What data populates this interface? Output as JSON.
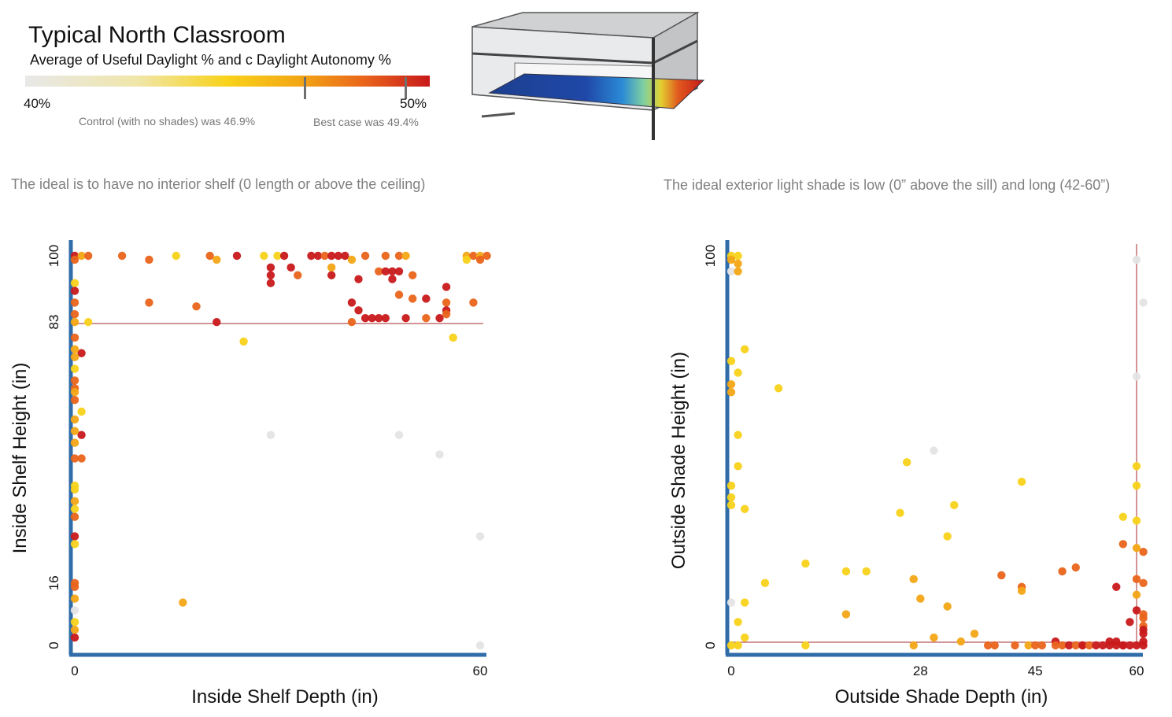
{
  "header": {
    "title": "Typical North Classroom",
    "subtitle": "Average of Useful Daylight % and c Daylight Autonomy %",
    "scale_min": "40%",
    "scale_max": "50%",
    "control_note": "Control (with no shades) was 46.9%",
    "best_note": "Best case was 49.4%",
    "control_value": 46.9,
    "best_value": 49.4
  },
  "captions": {
    "left": "The ideal is to have no interior shelf (0 length or above the ceiling)",
    "right": "The ideal exterior light shade is low (0” above the sill) and long (42-60”)"
  },
  "colors": {
    "axis": "#2f6ca8",
    "reference_line": "#a52a2a",
    "scale": [
      "#e4e4e4",
      "#f8d21a",
      "#f3a615",
      "#e9641b",
      "#c8191b"
    ]
  },
  "chart_data": [
    {
      "type": "scatter",
      "xlabel": "Inside Shelf Depth (in)",
      "ylabel": "Inside Shelf Height (in)",
      "xlim": [
        0,
        60
      ],
      "ylim": [
        0,
        100
      ],
      "xticks": [
        "0",
        "60"
      ],
      "yticks": [
        "0",
        "16",
        "83",
        "100"
      ],
      "ytick_values": [
        0,
        16,
        83,
        100
      ],
      "reference_lines": [
        {
          "axis": "y",
          "value": 83
        }
      ],
      "points": [
        [
          0,
          100,
          4
        ],
        [
          0,
          99,
          3
        ],
        [
          1,
          100,
          2
        ],
        [
          2,
          100,
          3
        ],
        [
          7,
          100,
          3
        ],
        [
          11,
          99,
          3
        ],
        [
          15,
          100,
          1
        ],
        [
          20,
          100,
          3
        ],
        [
          21,
          99,
          2
        ],
        [
          24,
          100,
          4
        ],
        [
          28,
          100,
          1
        ],
        [
          30,
          100,
          1
        ],
        [
          31,
          100,
          4
        ],
        [
          35,
          100,
          4
        ],
        [
          36,
          100,
          4
        ],
        [
          37,
          100,
          3
        ],
        [
          38,
          100,
          4
        ],
        [
          39,
          100,
          4
        ],
        [
          40,
          100,
          4
        ],
        [
          41,
          99,
          2
        ],
        [
          43,
          100,
          3
        ],
        [
          46,
          100,
          3
        ],
        [
          48,
          100,
          3
        ],
        [
          49,
          100,
          2
        ],
        [
          58,
          100,
          2
        ],
        [
          59,
          100,
          3
        ],
        [
          60,
          100,
          2
        ],
        [
          58,
          99,
          1
        ],
        [
          60,
          99,
          3
        ],
        [
          61,
          100,
          3
        ],
        [
          29,
          97,
          4
        ],
        [
          32,
          97,
          4
        ],
        [
          38,
          97,
          2
        ],
        [
          45,
          96,
          3
        ],
        [
          46,
          96,
          4
        ],
        [
          47,
          96,
          4
        ],
        [
          48,
          96,
          4
        ],
        [
          50,
          95,
          3
        ],
        [
          29,
          95,
          4
        ],
        [
          33,
          95,
          3
        ],
        [
          38,
          95,
          4
        ],
        [
          42,
          94,
          4
        ],
        [
          47,
          94,
          4
        ],
        [
          29,
          93,
          4
        ],
        [
          55,
          92,
          4
        ],
        [
          0,
          93,
          1
        ],
        [
          0,
          91,
          4
        ],
        [
          48,
          90,
          3
        ],
        [
          50,
          89,
          3
        ],
        [
          52,
          89,
          4
        ],
        [
          11,
          88,
          3
        ],
        [
          41,
          88,
          4
        ],
        [
          55,
          88,
          3
        ],
        [
          59,
          88,
          3
        ],
        [
          18,
          87,
          3
        ],
        [
          42,
          86,
          4
        ],
        [
          55,
          86,
          4
        ],
        [
          44,
          84,
          4
        ],
        [
          45,
          84,
          4
        ],
        [
          46,
          84,
          4
        ],
        [
          49,
          84,
          4
        ],
        [
          52,
          84,
          3
        ],
        [
          54,
          84,
          4
        ],
        [
          55,
          85,
          3
        ],
        [
          21,
          83,
          4
        ],
        [
          41,
          83,
          3
        ],
        [
          43,
          84,
          4
        ],
        [
          0,
          88,
          3
        ],
        [
          0,
          85,
          3
        ],
        [
          0,
          83,
          2
        ],
        [
          2,
          83,
          1
        ],
        [
          56,
          79,
          1
        ],
        [
          25,
          78,
          1
        ],
        [
          0,
          79,
          3
        ],
        [
          1,
          75,
          4
        ],
        [
          0,
          76,
          2
        ],
        [
          0,
          74,
          2
        ],
        [
          0,
          71,
          1
        ],
        [
          0,
          68,
          3
        ],
        [
          0,
          66,
          3
        ],
        [
          0,
          65,
          2
        ],
        [
          0,
          63,
          3
        ],
        [
          1,
          60,
          1
        ],
        [
          0,
          58,
          2
        ],
        [
          1,
          54,
          4
        ],
        [
          0,
          55,
          2
        ],
        [
          0,
          52,
          2
        ],
        [
          0,
          48,
          3
        ],
        [
          1,
          48,
          3
        ],
        [
          29,
          54,
          0
        ],
        [
          48,
          54,
          0
        ],
        [
          54,
          49,
          0
        ],
        [
          60,
          28,
          0
        ],
        [
          0,
          41,
          1
        ],
        [
          0,
          40,
          1
        ],
        [
          0,
          37,
          2
        ],
        [
          0,
          35,
          1
        ],
        [
          0,
          33,
          3
        ],
        [
          0,
          28,
          4
        ],
        [
          0,
          26,
          1
        ],
        [
          16,
          11,
          2
        ],
        [
          0,
          16,
          3
        ],
        [
          0,
          15,
          3
        ],
        [
          0,
          12,
          2
        ],
        [
          0,
          9,
          0
        ],
        [
          0,
          6,
          1
        ],
        [
          0,
          4,
          2
        ],
        [
          0,
          2,
          4
        ],
        [
          60,
          0,
          0
        ]
      ]
    },
    {
      "type": "scatter",
      "xlabel": "Outside Shade Depth (in)",
      "ylabel": "Outside Shade Height (in)",
      "xlim": [
        0,
        60
      ],
      "ylim": [
        0,
        100
      ],
      "xticks": [
        "0",
        "28",
        "45",
        "60"
      ],
      "xtick_values": [
        0,
        28,
        45,
        60
      ],
      "yticks": [
        "0",
        "100"
      ],
      "ytick_values": [
        0,
        100
      ],
      "reference_lines": [
        {
          "axis": "y",
          "value": 0
        },
        {
          "axis": "x",
          "value": 60
        }
      ],
      "points": [
        [
          0,
          100,
          1
        ],
        [
          1,
          100,
          1
        ],
        [
          0,
          99,
          2
        ],
        [
          1,
          98,
          2
        ],
        [
          0,
          96,
          0
        ],
        [
          1,
          96,
          2
        ],
        [
          60,
          99,
          0
        ],
        [
          61,
          88,
          0
        ],
        [
          2,
          76,
          1
        ],
        [
          0,
          73,
          1
        ],
        [
          1,
          70,
          1
        ],
        [
          0,
          67,
          2
        ],
        [
          0,
          65,
          2
        ],
        [
          7,
          66,
          1
        ],
        [
          60,
          69,
          0
        ],
        [
          1,
          54,
          1
        ],
        [
          1,
          46,
          1
        ],
        [
          30,
          50,
          0
        ],
        [
          26,
          47,
          1
        ],
        [
          43,
          42,
          1
        ],
        [
          60,
          46,
          1
        ],
        [
          60,
          41,
          1
        ],
        [
          0,
          41,
          1
        ],
        [
          0,
          38,
          1
        ],
        [
          0,
          36,
          1
        ],
        [
          2,
          35,
          1
        ],
        [
          33,
          36,
          1
        ],
        [
          25,
          34,
          1
        ],
        [
          60,
          32,
          1
        ],
        [
          58,
          33,
          1
        ],
        [
          32,
          28,
          1
        ],
        [
          60,
          25,
          2
        ],
        [
          58,
          26,
          3
        ],
        [
          61,
          24,
          3
        ],
        [
          11,
          21,
          1
        ],
        [
          17,
          19,
          1
        ],
        [
          20,
          19,
          1
        ],
        [
          40,
          18,
          3
        ],
        [
          49,
          19,
          3
        ],
        [
          51,
          20,
          3
        ],
        [
          5,
          16,
          1
        ],
        [
          27,
          17,
          2
        ],
        [
          43,
          15,
          3
        ],
        [
          43,
          14,
          2
        ],
        [
          57,
          15,
          4
        ],
        [
          60,
          17,
          3
        ],
        [
          61,
          16,
          3
        ],
        [
          60,
          13,
          2
        ],
        [
          0,
          11,
          0
        ],
        [
          2,
          11,
          1
        ],
        [
          28,
          12,
          2
        ],
        [
          32,
          10,
          2
        ],
        [
          60,
          9,
          4
        ],
        [
          61,
          8,
          3
        ],
        [
          61,
          7,
          3
        ],
        [
          17,
          8,
          2
        ],
        [
          1,
          6,
          1
        ],
        [
          59,
          6,
          4
        ],
        [
          61,
          5,
          3
        ],
        [
          61,
          4,
          4
        ],
        [
          36,
          3,
          2
        ],
        [
          30,
          2,
          2
        ],
        [
          2,
          2,
          1
        ],
        [
          61,
          3,
          4
        ],
        [
          34,
          1,
          2
        ],
        [
          38,
          0,
          3
        ],
        [
          48,
          1,
          4
        ],
        [
          52,
          0,
          3
        ],
        [
          56,
          1,
          4
        ],
        [
          57,
          1,
          4
        ],
        [
          58,
          0,
          4
        ],
        [
          61,
          1,
          4
        ],
        [
          0,
          0,
          1
        ],
        [
          1,
          0,
          1
        ],
        [
          11,
          0,
          1
        ],
        [
          27,
          0,
          2
        ],
        [
          39,
          0,
          3
        ],
        [
          42,
          0,
          3
        ],
        [
          44,
          0,
          2
        ],
        [
          45,
          0,
          3
        ],
        [
          46,
          0,
          3
        ],
        [
          48,
          0,
          3
        ],
        [
          49,
          0,
          3
        ],
        [
          50,
          0,
          4
        ],
        [
          51,
          0,
          3
        ],
        [
          52,
          0,
          4
        ],
        [
          53,
          0,
          3
        ],
        [
          54,
          0,
          4
        ],
        [
          55,
          0,
          4
        ],
        [
          56,
          0,
          4
        ],
        [
          57,
          0,
          4
        ],
        [
          58,
          0,
          4
        ],
        [
          59,
          0,
          4
        ],
        [
          60,
          0,
          4
        ],
        [
          61,
          0,
          4
        ]
      ]
    }
  ]
}
